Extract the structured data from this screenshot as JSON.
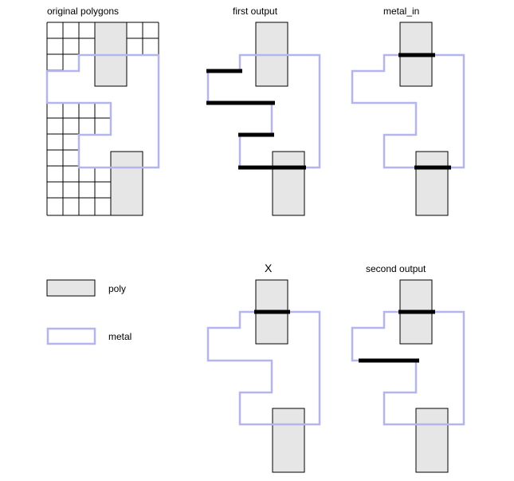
{
  "colors": {
    "poly_fill": "#e6e6e6",
    "poly_stroke": "#000000",
    "metal_stroke": "#b4b4f0",
    "cut_line": "#000000",
    "grid": "#000000"
  },
  "panels": {
    "original": {
      "title": "original polygons"
    },
    "first_output": {
      "title": "first output"
    },
    "metal_in": {
      "title": "metal_in"
    },
    "x": {
      "title": "X"
    },
    "second_output": {
      "title": "second output"
    }
  },
  "legend": {
    "poly": {
      "label": "poly",
      "icon": "poly-swatch-icon"
    },
    "metal": {
      "label": "metal",
      "icon": "metal-swatch-icon"
    }
  }
}
